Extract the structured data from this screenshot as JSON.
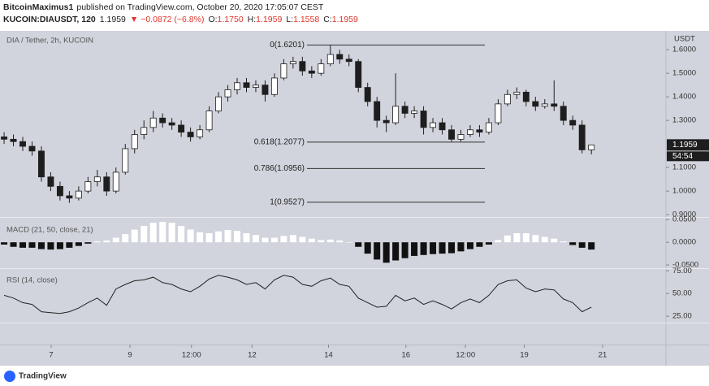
{
  "header": {
    "author": "BitcoinMaximus1",
    "published": "published on TradingView.com, October 20, 2020 17:05:07 CEST",
    "symbol": "KUCOIN:DIAUSDT, 120",
    "last": "1.1959",
    "change": "▼ −0.0872 (−6.8%)",
    "ohlc": [
      {
        "label": "O:",
        "value": "1.1750"
      },
      {
        "label": "H:",
        "value": "1.1959"
      },
      {
        "label": "L:",
        "value": "1.1558"
      },
      {
        "label": "C:",
        "value": "1.1959"
      }
    ]
  },
  "footer": {
    "brand": "TradingView"
  },
  "chart_data": [
    {
      "type": "candlestick",
      "title": "DIA / Tether, 2h, KUCOIN",
      "axis_label": "USDT",
      "countdown": "54:54",
      "up_color": "#ffffff",
      "down_color": "#1e1e1e",
      "wick_color": "#1e1e1e",
      "open": [
        1.23,
        1.22,
        1.21,
        1.19,
        1.17,
        1.06,
        1.02,
        0.98,
        0.97,
        1.0,
        1.04,
        1.06,
        1.0,
        1.08,
        1.18,
        1.24,
        1.27,
        1.31,
        1.29,
        1.28,
        1.25,
        1.23,
        1.26,
        1.34,
        1.4,
        1.43,
        1.46,
        1.44,
        1.45,
        1.41,
        1.48,
        1.54,
        1.55,
        1.51,
        1.5,
        1.54,
        1.58,
        1.56,
        1.55,
        1.44,
        1.38,
        1.3,
        1.29,
        1.36,
        1.33,
        1.34,
        1.27,
        1.29,
        1.26,
        1.22,
        1.24,
        1.26,
        1.25,
        1.29,
        1.37,
        1.41,
        1.42,
        1.38,
        1.36,
        1.37,
        1.36,
        1.3,
        1.28,
        1.175
      ],
      "high": [
        1.25,
        1.24,
        1.23,
        1.21,
        1.19,
        1.08,
        1.04,
        1.0,
        1.02,
        1.06,
        1.09,
        1.08,
        1.1,
        1.2,
        1.26,
        1.3,
        1.34,
        1.33,
        1.31,
        1.3,
        1.27,
        1.28,
        1.36,
        1.42,
        1.45,
        1.48,
        1.48,
        1.47,
        1.47,
        1.5,
        1.56,
        1.57,
        1.57,
        1.53,
        1.56,
        1.62,
        1.6,
        1.58,
        1.56,
        1.46,
        1.4,
        1.32,
        1.5,
        1.38,
        1.36,
        1.36,
        1.31,
        1.31,
        1.28,
        1.26,
        1.28,
        1.28,
        1.31,
        1.39,
        1.43,
        1.44,
        1.43,
        1.4,
        1.39,
        1.47,
        1.38,
        1.32,
        1.3,
        1.1959
      ],
      "low": [
        1.2,
        1.19,
        1.17,
        1.15,
        1.04,
        1.0,
        0.96,
        0.95,
        0.96,
        0.99,
        1.02,
        0.98,
        0.99,
        1.07,
        1.16,
        1.22,
        1.25,
        1.27,
        1.26,
        1.23,
        1.21,
        1.22,
        1.25,
        1.33,
        1.38,
        1.41,
        1.42,
        1.42,
        1.38,
        1.4,
        1.47,
        1.52,
        1.49,
        1.48,
        1.49,
        1.53,
        1.54,
        1.53,
        1.42,
        1.36,
        1.27,
        1.25,
        1.28,
        1.31,
        1.31,
        1.24,
        1.25,
        1.24,
        1.21,
        1.21,
        1.23,
        1.23,
        1.24,
        1.28,
        1.36,
        1.39,
        1.36,
        1.34,
        1.35,
        1.34,
        1.28,
        1.26,
        1.16,
        1.1558
      ],
      "close": [
        1.22,
        1.21,
        1.19,
        1.17,
        1.06,
        1.02,
        0.98,
        0.97,
        1.0,
        1.04,
        1.06,
        1.0,
        1.08,
        1.18,
        1.24,
        1.27,
        1.31,
        1.29,
        1.28,
        1.25,
        1.23,
        1.26,
        1.34,
        1.4,
        1.43,
        1.46,
        1.44,
        1.45,
        1.41,
        1.48,
        1.54,
        1.55,
        1.51,
        1.5,
        1.54,
        1.58,
        1.56,
        1.55,
        1.44,
        1.38,
        1.3,
        1.29,
        1.36,
        1.33,
        1.34,
        1.27,
        1.29,
        1.26,
        1.22,
        1.24,
        1.26,
        1.25,
        1.29,
        1.37,
        1.41,
        1.42,
        1.38,
        1.36,
        1.37,
        1.36,
        1.3,
        1.28,
        1.175,
        1.1959
      ],
      "xlim": [
        -0.44,
        71
      ],
      "xticks": [
        {
          "value": 5.05,
          "label": "7"
        },
        {
          "value": 13.5,
          "label": "9"
        },
        {
          "value": 20.1,
          "label": "12:00"
        },
        {
          "value": 26.6,
          "label": "12"
        },
        {
          "value": 34.8,
          "label": "14"
        },
        {
          "value": 43.1,
          "label": "16"
        },
        {
          "value": 49.5,
          "label": "12:00"
        },
        {
          "value": 55.8,
          "label": "19"
        },
        {
          "value": 64.2,
          "label": "21"
        }
      ],
      "ylim": [
        0.89,
        1.68
      ],
      "yticks": [
        {
          "value": 0.9,
          "label": "0.9000"
        },
        {
          "value": 1.0,
          "label": "1.0000"
        },
        {
          "value": 1.1,
          "label": "1.1000"
        },
        {
          "value": 1.3,
          "label": "1.3000"
        },
        {
          "value": 1.4,
          "label": "1.4000"
        },
        {
          "value": 1.5,
          "label": "1.5000"
        },
        {
          "value": 1.6,
          "label": "1.6000"
        }
      ],
      "annotations": [
        {
          "value": 1.6201,
          "label": "0(1.6201)"
        },
        {
          "value": 1.2077,
          "label": "0.618(1.2077)"
        },
        {
          "value": 1.0956,
          "label": "0.786(1.0956)"
        },
        {
          "value": 0.9527,
          "label": "1(0.9527)"
        }
      ]
    },
    {
      "type": "bar",
      "title": "MACD (21, 50, close, 21)",
      "positive_color": "#ffffff",
      "negative_color": "#111111",
      "values": [
        -0.005,
        -0.01,
        -0.012,
        -0.012,
        -0.015,
        -0.016,
        -0.015,
        -0.012,
        -0.008,
        -0.003,
        0.002,
        0.004,
        0.01,
        0.018,
        0.028,
        0.036,
        0.043,
        0.045,
        0.043,
        0.036,
        0.028,
        0.022,
        0.02,
        0.024,
        0.027,
        0.025,
        0.02,
        0.016,
        0.01,
        0.01,
        0.014,
        0.016,
        0.012,
        0.008,
        0.005,
        0.006,
        0.004,
        0.0,
        -0.01,
        -0.025,
        -0.038,
        -0.045,
        -0.04,
        -0.035,
        -0.03,
        -0.028,
        -0.026,
        -0.025,
        -0.024,
        -0.02,
        -0.015,
        -0.01,
        -0.005,
        0.005,
        0.015,
        0.02,
        0.02,
        0.016,
        0.012,
        0.008,
        0.002,
        -0.006,
        -0.012,
        -0.016
      ],
      "ylim": [
        -0.057,
        0.054
      ],
      "yticks": [
        {
          "value": -0.05,
          "label": "-0.0500"
        },
        {
          "value": 0,
          "label": "0.0000"
        },
        {
          "value": 0.05,
          "label": "0.0500"
        }
      ]
    },
    {
      "type": "line",
      "title": "RSI (14, close)",
      "color": "#222222",
      "values": [
        48,
        45,
        40,
        38,
        30,
        29,
        28,
        30,
        34,
        40,
        45,
        37,
        55,
        60,
        64,
        65,
        68,
        62,
        60,
        55,
        52,
        58,
        66,
        70,
        68,
        65,
        60,
        62,
        55,
        65,
        70,
        68,
        60,
        58,
        64,
        67,
        60,
        58,
        45,
        40,
        35,
        36,
        48,
        42,
        45,
        38,
        42,
        38,
        33,
        40,
        44,
        40,
        48,
        60,
        64,
        65,
        56,
        52,
        55,
        54,
        44,
        40,
        30,
        35
      ],
      "ylim": [
        18,
        77
      ],
      "yticks": [
        {
          "value": 25,
          "label": "25.00"
        },
        {
          "value": 50,
          "label": "50.00"
        },
        {
          "value": 75,
          "label": "75.00"
        }
      ]
    }
  ]
}
